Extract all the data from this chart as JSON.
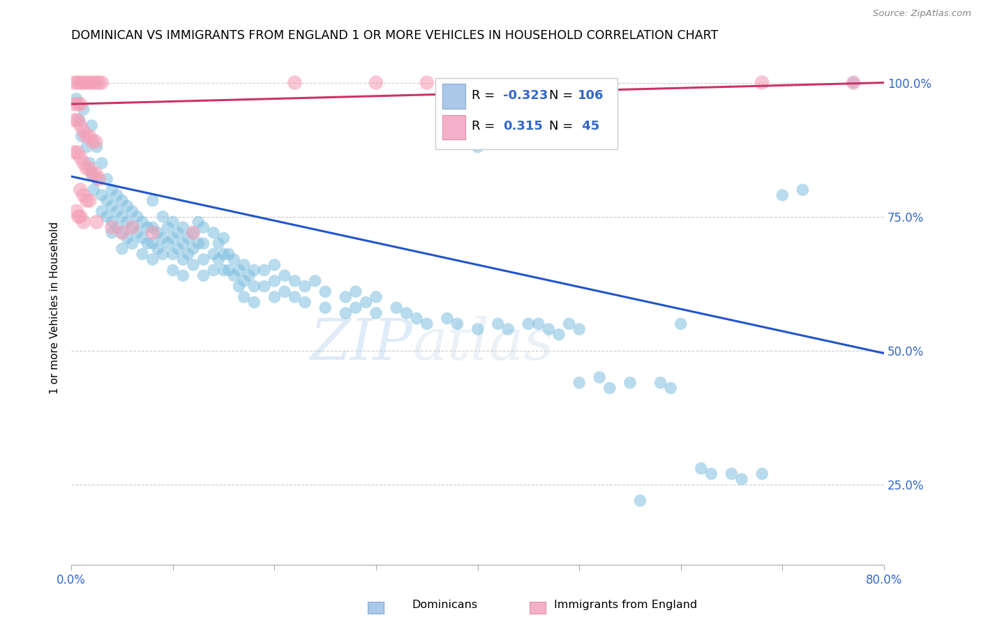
{
  "title": "DOMINICAN VS IMMIGRANTS FROM ENGLAND 1 OR MORE VEHICLES IN HOUSEHOLD CORRELATION CHART",
  "source": "Source: ZipAtlas.com",
  "ylabel": "1 or more Vehicles in Household",
  "ytick_labels": [
    "25.0%",
    "50.0%",
    "75.0%",
    "100.0%"
  ],
  "ytick_values": [
    0.25,
    0.5,
    0.75,
    1.0
  ],
  "xlim": [
    0.0,
    0.8
  ],
  "ylim": [
    0.1,
    1.06
  ],
  "watermark_zip": "ZIP",
  "watermark_atlas": "atlas",
  "legend_blue_r": "-0.323",
  "legend_blue_n": "106",
  "legend_pink_r": "0.315",
  "legend_pink_n": "45",
  "dominican_color": "#7fbfdf",
  "england_color": "#f4a0b8",
  "line_blue_color": "#2255cc",
  "line_pink_color": "#cc3366",
  "blue_line_x": [
    0.0,
    0.8
  ],
  "blue_line_y": [
    0.825,
    0.495
  ],
  "pink_line_x": [
    0.0,
    0.8
  ],
  "pink_line_y": [
    0.96,
    1.0
  ],
  "blue_dots": [
    [
      0.005,
      0.97
    ],
    [
      0.008,
      0.93
    ],
    [
      0.01,
      0.9
    ],
    [
      0.012,
      0.95
    ],
    [
      0.015,
      0.88
    ],
    [
      0.018,
      0.85
    ],
    [
      0.02,
      0.92
    ],
    [
      0.02,
      0.83
    ],
    [
      0.022,
      0.8
    ],
    [
      0.025,
      0.88
    ],
    [
      0.025,
      0.82
    ],
    [
      0.03,
      0.85
    ],
    [
      0.03,
      0.79
    ],
    [
      0.03,
      0.76
    ],
    [
      0.035,
      0.82
    ],
    [
      0.035,
      0.78
    ],
    [
      0.035,
      0.75
    ],
    [
      0.04,
      0.8
    ],
    [
      0.04,
      0.77
    ],
    [
      0.04,
      0.74
    ],
    [
      0.04,
      0.72
    ],
    [
      0.045,
      0.79
    ],
    [
      0.045,
      0.76
    ],
    [
      0.045,
      0.73
    ],
    [
      0.05,
      0.78
    ],
    [
      0.05,
      0.75
    ],
    [
      0.05,
      0.72
    ],
    [
      0.05,
      0.69
    ],
    [
      0.055,
      0.77
    ],
    [
      0.055,
      0.74
    ],
    [
      0.055,
      0.71
    ],
    [
      0.06,
      0.76
    ],
    [
      0.06,
      0.73
    ],
    [
      0.06,
      0.7
    ],
    [
      0.065,
      0.75
    ],
    [
      0.065,
      0.72
    ],
    [
      0.07,
      0.74
    ],
    [
      0.07,
      0.71
    ],
    [
      0.07,
      0.68
    ],
    [
      0.075,
      0.73
    ],
    [
      0.075,
      0.7
    ],
    [
      0.08,
      0.78
    ],
    [
      0.08,
      0.73
    ],
    [
      0.08,
      0.7
    ],
    [
      0.08,
      0.67
    ],
    [
      0.085,
      0.72
    ],
    [
      0.085,
      0.69
    ],
    [
      0.09,
      0.75
    ],
    [
      0.09,
      0.71
    ],
    [
      0.09,
      0.68
    ],
    [
      0.095,
      0.73
    ],
    [
      0.095,
      0.7
    ],
    [
      0.1,
      0.74
    ],
    [
      0.1,
      0.71
    ],
    [
      0.1,
      0.68
    ],
    [
      0.1,
      0.65
    ],
    [
      0.105,
      0.72
    ],
    [
      0.105,
      0.69
    ],
    [
      0.11,
      0.73
    ],
    [
      0.11,
      0.7
    ],
    [
      0.11,
      0.67
    ],
    [
      0.11,
      0.64
    ],
    [
      0.115,
      0.71
    ],
    [
      0.115,
      0.68
    ],
    [
      0.12,
      0.72
    ],
    [
      0.12,
      0.69
    ],
    [
      0.12,
      0.66
    ],
    [
      0.125,
      0.74
    ],
    [
      0.125,
      0.7
    ],
    [
      0.13,
      0.73
    ],
    [
      0.13,
      0.7
    ],
    [
      0.13,
      0.67
    ],
    [
      0.13,
      0.64
    ],
    [
      0.14,
      0.72
    ],
    [
      0.14,
      0.68
    ],
    [
      0.14,
      0.65
    ],
    [
      0.145,
      0.7
    ],
    [
      0.145,
      0.67
    ],
    [
      0.15,
      0.71
    ],
    [
      0.15,
      0.68
    ],
    [
      0.15,
      0.65
    ],
    [
      0.155,
      0.68
    ],
    [
      0.155,
      0.65
    ],
    [
      0.16,
      0.67
    ],
    [
      0.16,
      0.64
    ],
    [
      0.165,
      0.65
    ],
    [
      0.165,
      0.62
    ],
    [
      0.17,
      0.66
    ],
    [
      0.17,
      0.63
    ],
    [
      0.17,
      0.6
    ],
    [
      0.175,
      0.64
    ],
    [
      0.18,
      0.65
    ],
    [
      0.18,
      0.62
    ],
    [
      0.18,
      0.59
    ],
    [
      0.19,
      0.65
    ],
    [
      0.19,
      0.62
    ],
    [
      0.2,
      0.66
    ],
    [
      0.2,
      0.63
    ],
    [
      0.2,
      0.6
    ],
    [
      0.21,
      0.64
    ],
    [
      0.21,
      0.61
    ],
    [
      0.22,
      0.63
    ],
    [
      0.22,
      0.6
    ],
    [
      0.23,
      0.62
    ],
    [
      0.23,
      0.59
    ],
    [
      0.24,
      0.63
    ],
    [
      0.25,
      0.61
    ],
    [
      0.25,
      0.58
    ],
    [
      0.27,
      0.6
    ],
    [
      0.27,
      0.57
    ],
    [
      0.28,
      0.61
    ],
    [
      0.28,
      0.58
    ],
    [
      0.29,
      0.59
    ],
    [
      0.3,
      0.6
    ],
    [
      0.3,
      0.57
    ],
    [
      0.32,
      0.58
    ],
    [
      0.33,
      0.57
    ],
    [
      0.34,
      0.56
    ],
    [
      0.35,
      0.55
    ],
    [
      0.37,
      0.56
    ],
    [
      0.38,
      0.55
    ],
    [
      0.4,
      0.88
    ],
    [
      0.4,
      0.54
    ],
    [
      0.42,
      0.55
    ],
    [
      0.43,
      0.54
    ],
    [
      0.45,
      0.55
    ],
    [
      0.46,
      0.55
    ],
    [
      0.47,
      0.54
    ],
    [
      0.48,
      0.53
    ],
    [
      0.49,
      0.55
    ],
    [
      0.5,
      0.54
    ],
    [
      0.5,
      0.44
    ],
    [
      0.52,
      0.45
    ],
    [
      0.53,
      0.43
    ],
    [
      0.55,
      0.44
    ],
    [
      0.56,
      0.22
    ],
    [
      0.58,
      0.44
    ],
    [
      0.59,
      0.43
    ],
    [
      0.6,
      0.55
    ],
    [
      0.62,
      0.28
    ],
    [
      0.63,
      0.27
    ],
    [
      0.65,
      0.27
    ],
    [
      0.66,
      0.26
    ],
    [
      0.68,
      0.27
    ],
    [
      0.7,
      0.79
    ],
    [
      0.72,
      0.8
    ],
    [
      0.77,
      1.0
    ]
  ],
  "pink_dots": [
    [
      0.003,
      1.0
    ],
    [
      0.006,
      1.0
    ],
    [
      0.009,
      1.0
    ],
    [
      0.012,
      1.0
    ],
    [
      0.015,
      1.0
    ],
    [
      0.018,
      1.0
    ],
    [
      0.021,
      1.0
    ],
    [
      0.024,
      1.0
    ],
    [
      0.027,
      1.0
    ],
    [
      0.03,
      1.0
    ],
    [
      0.003,
      0.96
    ],
    [
      0.006,
      0.96
    ],
    [
      0.009,
      0.96
    ],
    [
      0.003,
      0.93
    ],
    [
      0.006,
      0.93
    ],
    [
      0.009,
      0.92
    ],
    [
      0.012,
      0.91
    ],
    [
      0.015,
      0.9
    ],
    [
      0.018,
      0.9
    ],
    [
      0.021,
      0.89
    ],
    [
      0.024,
      0.89
    ],
    [
      0.003,
      0.87
    ],
    [
      0.006,
      0.87
    ],
    [
      0.009,
      0.86
    ],
    [
      0.012,
      0.85
    ],
    [
      0.015,
      0.84
    ],
    [
      0.018,
      0.84
    ],
    [
      0.021,
      0.83
    ],
    [
      0.024,
      0.83
    ],
    [
      0.027,
      0.82
    ],
    [
      0.009,
      0.8
    ],
    [
      0.012,
      0.79
    ],
    [
      0.015,
      0.78
    ],
    [
      0.018,
      0.78
    ],
    [
      0.005,
      0.76
    ],
    [
      0.007,
      0.75
    ],
    [
      0.009,
      0.75
    ],
    [
      0.012,
      0.74
    ],
    [
      0.025,
      0.74
    ],
    [
      0.04,
      0.73
    ],
    [
      0.05,
      0.72
    ],
    [
      0.06,
      0.73
    ],
    [
      0.08,
      0.72
    ],
    [
      0.12,
      0.72
    ],
    [
      0.22,
      1.0
    ],
    [
      0.3,
      1.0
    ],
    [
      0.35,
      1.0
    ],
    [
      0.68,
      1.0
    ],
    [
      0.77,
      1.0
    ]
  ]
}
